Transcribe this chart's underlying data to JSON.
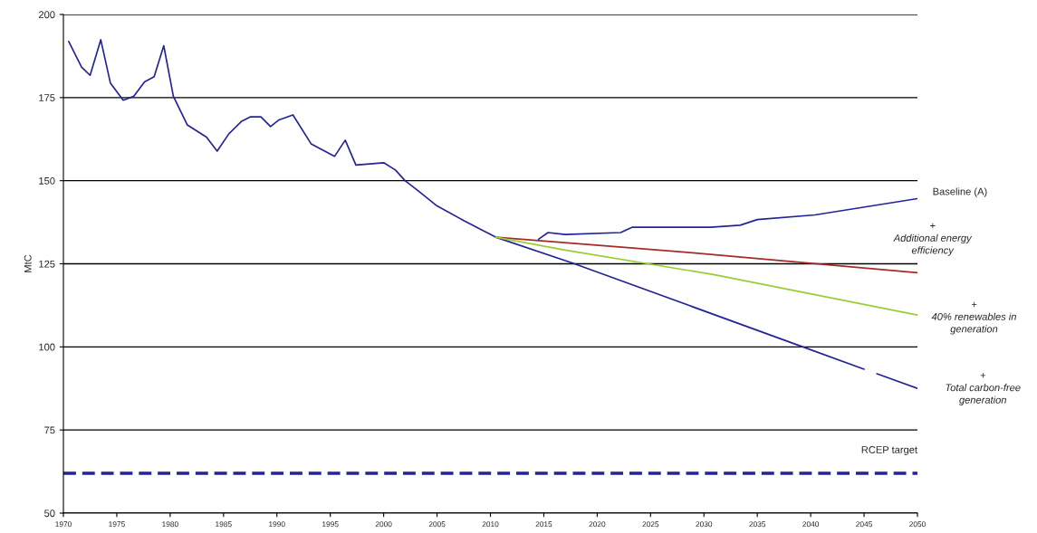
{
  "chart_data": {
    "type": "line",
    "ylabel": "MtC",
    "xlim": [
      1970,
      2050
    ],
    "xticks": [
      1970,
      1975,
      1980,
      1985,
      1990,
      1995,
      2000,
      2005,
      2010,
      2015,
      2020,
      2025,
      2030,
      2035,
      2040,
      2045,
      2050
    ],
    "ylim": [
      50,
      200
    ],
    "yticks": [
      50,
      75,
      100,
      125,
      150,
      175,
      200
    ],
    "grid": "y",
    "legend": false,
    "line_style": "solid",
    "marker": "none",
    "series": [
      {
        "name": "+\nTotal carbon-free\ngeneration",
        "color": "#23239a",
        "x": [
          1970.5,
          1971.7,
          1972.5,
          1973.5,
          1974.4,
          1975.6,
          1976.6,
          1977.6,
          1978.5,
          1979.4,
          1980.3,
          1981.6,
          1983.4,
          1984.4,
          1985.5,
          1986.7,
          1987.5,
          1988.5,
          1989.4,
          1990.2,
          1991.5,
          1993.2,
          1995.4,
          1996.4,
          1997.4,
          2000,
          2001.1,
          2002,
          2003.1,
          2005,
          2007.5,
          2010.5,
          2017.7,
          2039.1,
          2045,
          2045.6,
          2046.2,
          2050
        ],
        "values": [
          191.9,
          184.2,
          181.7,
          192.4,
          179.4,
          174.2,
          175.4,
          179.7,
          181.3,
          190.6,
          175.4,
          166.8,
          163.1,
          158.9,
          164.1,
          167.9,
          169.2,
          169.2,
          166.3,
          168.3,
          169.8,
          161.1,
          157.3,
          162.2,
          154.7,
          155.4,
          153.2,
          150,
          147.3,
          142.4,
          138,
          133,
          125.2,
          100.2,
          93.3,
          null,
          91.9,
          87.5
        ]
      },
      {
        "name": "Baseline (A)",
        "color": "#23239a",
        "x": [
          2014.5,
          2015.4,
          2017,
          2022.2,
          2023.3,
          2030.6,
          2033.4,
          2035,
          2040.4,
          2050
        ],
        "values": [
          132.4,
          134.4,
          133.8,
          134.4,
          136,
          136,
          136.6,
          138.3,
          139.7,
          144.6
        ]
      },
      {
        "name": "+\nAdditional energy\nefficiency",
        "color": "#a52a2a",
        "x": [
          2010.5,
          2028.2,
          2050
        ],
        "values": [
          133,
          128.5,
          122.3
        ]
      },
      {
        "name": "+\n40% renewables in\ngeneration",
        "color": "#9acd32",
        "x": [
          2010.5,
          2017,
          2031,
          2050
        ],
        "values": [
          133,
          129.1,
          121.7,
          109.6
        ]
      }
    ],
    "ref_lines": [
      {
        "axis": "y",
        "value": 62,
        "label": "RCEP target",
        "color": "#23239a",
        "line_style": "dashed"
      }
    ]
  }
}
